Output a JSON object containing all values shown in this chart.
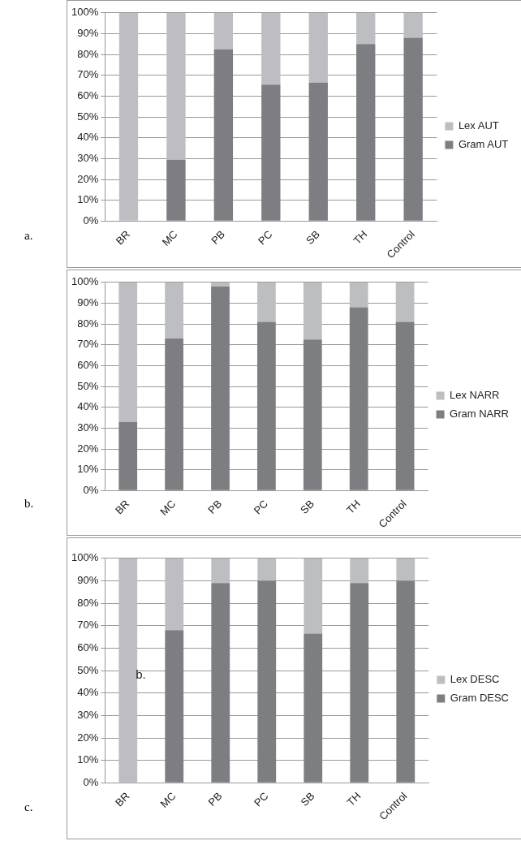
{
  "chart_data": [
    {
      "type": "bar",
      "stacked": true,
      "categories": [
        "BR",
        "MC",
        "PB",
        "PC",
        "SB",
        "TH",
        "Control"
      ],
      "series": [
        {
          "name": "Gram AUT",
          "color": "#7d7e82",
          "values": [
            0,
            29.5,
            82.5,
            65.5,
            66.5,
            85,
            88
          ]
        },
        {
          "name": "Lex AUT",
          "color": "#bdbec2",
          "values": [
            100,
            70.5,
            17.5,
            34.5,
            33.5,
            15,
            12
          ]
        }
      ],
      "ylim": [
        0,
        100
      ],
      "yticks": [
        {
          "value": 0,
          "label": "0%"
        },
        {
          "value": 10,
          "label": "10%"
        },
        {
          "value": 20,
          "label": "20%"
        },
        {
          "value": 30,
          "label": "30%"
        },
        {
          "value": 40,
          "label": "40%"
        },
        {
          "value": 50,
          "label": "50%"
        },
        {
          "value": 60,
          "label": "60%"
        },
        {
          "value": 70,
          "label": "70%"
        },
        {
          "value": 80,
          "label": "80%"
        },
        {
          "value": 90,
          "label": "90%"
        },
        {
          "value": 100,
          "label": "100%"
        }
      ],
      "grid": "y",
      "legend": "right",
      "annotations": [
        "a."
      ]
    },
    {
      "type": "bar",
      "stacked": true,
      "categories": [
        "BR",
        "MC",
        "PB",
        "PC",
        "SB",
        "TH",
        "Control"
      ],
      "series": [
        {
          "name": "Gram NARR",
          "color": "#7d7e82",
          "values": [
            33,
            73,
            98,
            81,
            72.5,
            88,
            81
          ]
        },
        {
          "name": "Lex NARR",
          "color": "#bdbec2",
          "values": [
            67,
            27,
            2,
            19,
            27.5,
            12,
            19
          ]
        }
      ],
      "ylim": [
        0,
        100
      ],
      "yticks": [
        {
          "value": 0,
          "label": "0%"
        },
        {
          "value": 10,
          "label": "10%"
        },
        {
          "value": 20,
          "label": "20%"
        },
        {
          "value": 30,
          "label": "30%"
        },
        {
          "value": 40,
          "label": "40%"
        },
        {
          "value": 50,
          "label": "50%"
        },
        {
          "value": 60,
          "label": "60%"
        },
        {
          "value": 70,
          "label": "70%"
        },
        {
          "value": 80,
          "label": "80%"
        },
        {
          "value": 90,
          "label": "90%"
        },
        {
          "value": 100,
          "label": "100%"
        }
      ],
      "grid": "y",
      "legend": "right",
      "annotations": [
        "b."
      ]
    },
    {
      "type": "bar",
      "stacked": true,
      "categories": [
        "BR",
        "MC",
        "PB",
        "PC",
        "SB",
        "TH",
        "Control"
      ],
      "series": [
        {
          "name": "Gram DESC",
          "color": "#7d7e82",
          "values": [
            0,
            68,
            89,
            90,
            66.5,
            89,
            90
          ]
        },
        {
          "name": "Lex DESC",
          "color": "#bdbec2",
          "values": [
            100,
            32,
            11,
            10,
            33.5,
            11,
            10
          ]
        }
      ],
      "ylim": [
        0,
        100
      ],
      "yticks": [
        {
          "value": 0,
          "label": "0%"
        },
        {
          "value": 10,
          "label": "10%"
        },
        {
          "value": 20,
          "label": "20%"
        },
        {
          "value": 30,
          "label": "30%"
        },
        {
          "value": 40,
          "label": "40%"
        },
        {
          "value": 50,
          "label": "50%"
        },
        {
          "value": 60,
          "label": "60%"
        },
        {
          "value": 70,
          "label": "70%"
        },
        {
          "value": 80,
          "label": "80%"
        },
        {
          "value": 90,
          "label": "90%"
        },
        {
          "value": 100,
          "label": "100%"
        }
      ],
      "grid": "y",
      "legend": "right",
      "annotations": [
        "c.",
        "b."
      ]
    }
  ]
}
